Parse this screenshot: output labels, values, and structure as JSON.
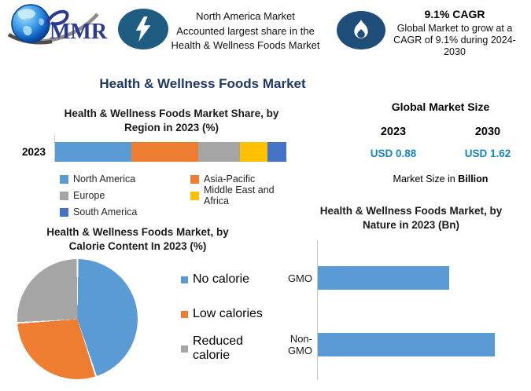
{
  "palette": {
    "main_title_navy": "#1F3864",
    "lightning_circle": "#1F5C82",
    "flame_circle": "#1E4E79",
    "usd_value_blue": "#1584C5",
    "logo_text_blue": "#2B3990"
  },
  "header": {
    "logo_text": "MMR",
    "callout_left": {
      "icon": "lightning-icon",
      "lines": [
        "North America Market",
        "Accounted largest share in the",
        "Health & Wellness Foods Market"
      ]
    },
    "callout_right": {
      "icon": "flame-icon",
      "heading": "9.1% CAGR",
      "lines": [
        "Global Market to grow at a",
        "CAGR of 9.1% during 2024-",
        "2030"
      ]
    }
  },
  "main_title": "Health & Wellness Foods Market",
  "market_size": {
    "title": "Global Market Size",
    "year_left": "2023",
    "year_right": "2030",
    "value_left": "USD 0.88",
    "value_right": "USD 1.62",
    "note_prefix": "Market Size in",
    "note_bold": "Billion"
  },
  "chart_data": [
    {
      "type": "bar",
      "orientation": "horizontal-stacked",
      "title": "Health & Wellness Foods Market Share, by Region in 2023 (%)",
      "title_lines": [
        "Health & Wellness Foods Market Share, by",
        "Region in 2023 (%)"
      ],
      "categories": [
        "2023"
      ],
      "units": "%",
      "values_estimated_from_segment_widths": true,
      "legend_position": "bottom",
      "series": [
        {
          "name": "North America",
          "values": [
            33
          ],
          "color": "#5B9BD5"
        },
        {
          "name": "Asia-Pacific",
          "values": [
            29
          ],
          "color": "#ED7D31"
        },
        {
          "name": "Europe",
          "values": [
            18
          ],
          "color": "#A5A5A5"
        },
        {
          "name": "Middle East and Africa",
          "values": [
            12
          ],
          "color": "#FFC000"
        },
        {
          "name": "South America",
          "values": [
            8
          ],
          "color": "#4472C4"
        }
      ]
    },
    {
      "type": "pie",
      "title": "Health & Wellness Foods Market, by Calorie Content In 2023 (%)",
      "title_lines": [
        "Health & Wellness Foods Market, by",
        "Calorie Content In 2023 (%)"
      ],
      "labels": [
        "No calorie",
        "Low calories",
        "Reduced calorie"
      ],
      "values": [
        45,
        29,
        26
      ],
      "colors": [
        "#5B9BD5",
        "#ED7D31",
        "#A5A5A5"
      ],
      "units": "%",
      "values_estimated_from_slice_angles": true,
      "legend_position": "right",
      "start_angle_deg": 0
    },
    {
      "type": "bar",
      "orientation": "horizontal",
      "title": "Health & Wellness Foods Market, by Nature in 2023 (Bn)",
      "title_lines": [
        "Health & Wellness Foods Market, by",
        "Nature in 2023 (Bn)"
      ],
      "categories": [
        "GMO",
        "Non-GMO"
      ],
      "values": [
        0.74,
        1.0
      ],
      "color": "#5B9BD5",
      "axis_scale_shown": false,
      "values_are_relative_bar_lengths": true
    }
  ]
}
